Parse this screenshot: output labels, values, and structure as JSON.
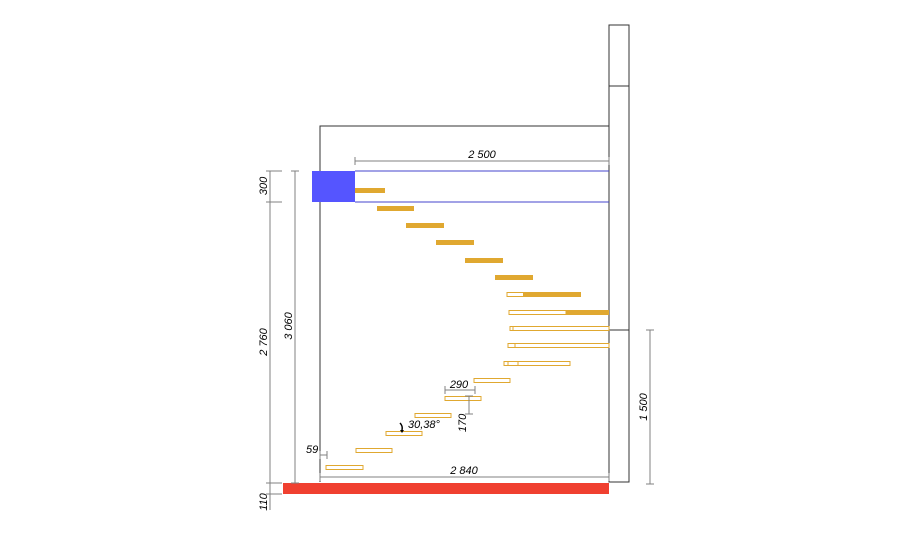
{
  "drawing": {
    "colors": {
      "outline": "#333333",
      "slab": "#5555ff",
      "slab_line": "#4444cc",
      "floor": "#f04030",
      "step_filled": "#e0a830",
      "step_outline": "#e0a830",
      "dim_line": "#808080",
      "dim_text": "#000000"
    },
    "dimensions": {
      "top_width": "2 500",
      "bottom_width": "2 840",
      "slab_thickness": "300",
      "floor_to_slab": "2 760",
      "total_height": "3 060",
      "floor_thickness": "110",
      "right_height": "1 500",
      "tread": "290",
      "riser": "170",
      "angle": "30,38°",
      "offset": "59"
    }
  }
}
